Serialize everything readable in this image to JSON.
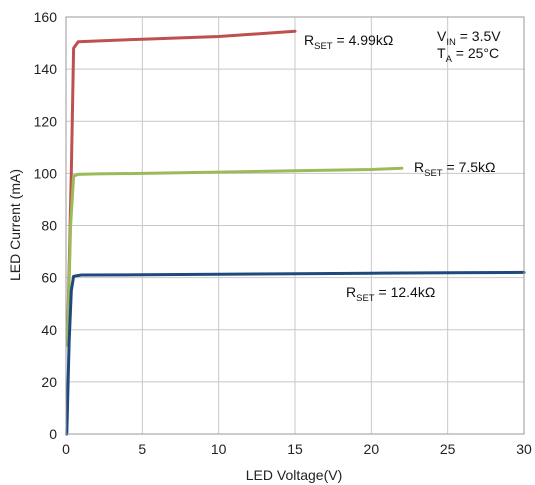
{
  "chart_data": {
    "type": "line",
    "xlabel": "LED Voltage(V)",
    "ylabel": "LED Current (mA)",
    "xlim": [
      0,
      30
    ],
    "ylim": [
      0,
      160
    ],
    "x_ticks": [
      0,
      5,
      10,
      15,
      20,
      25,
      30
    ],
    "y_ticks": [
      0,
      20,
      40,
      60,
      80,
      100,
      120,
      140,
      160
    ],
    "grid": true,
    "conditions": [
      {
        "main": "V",
        "sub": "IN",
        "rest": " = 3.5V"
      },
      {
        "main": "T",
        "sub": "A",
        "rest": " = 25°C"
      }
    ],
    "series": [
      {
        "label_main": "R",
        "label_sub": "SET",
        "label_rest": " = 4.99kΩ",
        "color": "#c0504d",
        "x": [
          0.1,
          0.35,
          0.5,
          0.8,
          2,
          5,
          10,
          15
        ],
        "y": [
          36,
          100,
          148,
          150.5,
          150.8,
          151.5,
          152.5,
          154.5
        ]
      },
      {
        "label_main": "R",
        "label_sub": "SET",
        "label_rest": " = 7.5kΩ",
        "color": "#9bbb59",
        "x": [
          0.1,
          0.3,
          0.5,
          0.8,
          2,
          5,
          10,
          15,
          20,
          22
        ],
        "y": [
          34,
          80,
          99,
          99.6,
          99.8,
          100,
          100.5,
          101,
          101.5,
          102
        ]
      },
      {
        "label_main": "R",
        "label_sub": "SET",
        "label_rest": " = 12.4kΩ",
        "color": "#1f497d",
        "x": [
          0.05,
          0.2,
          0.35,
          0.5,
          1,
          5,
          10,
          15,
          20,
          25,
          30
        ],
        "y": [
          0,
          35,
          55,
          60.5,
          61,
          61.1,
          61.3,
          61.5,
          61.7,
          61.9,
          62
        ]
      }
    ]
  }
}
